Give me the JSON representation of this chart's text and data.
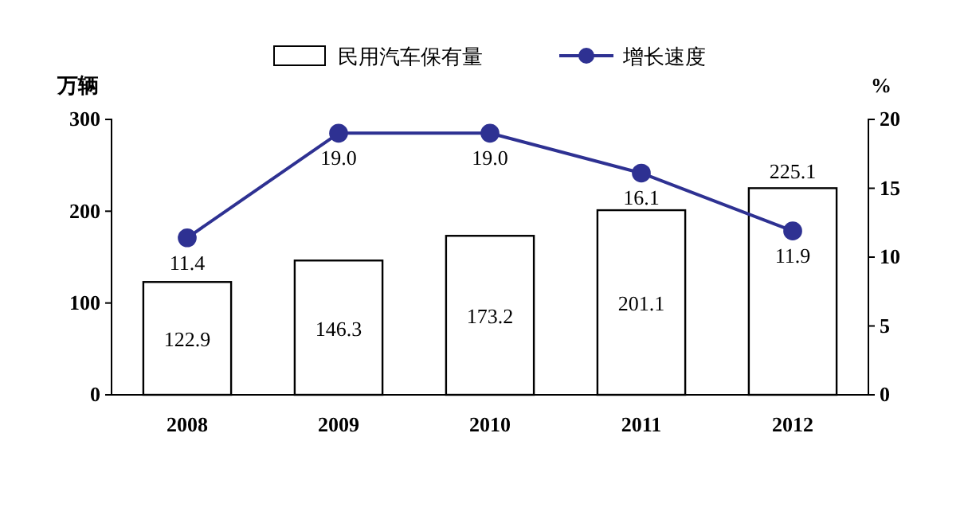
{
  "chart_data": {
    "type": "bar",
    "categories": [
      "2008",
      "2009",
      "2010",
      "2011",
      "2012"
    ],
    "series": [
      {
        "name": "民用汽车保有量",
        "color": "#ffffff",
        "values": [
          122.9,
          146.3,
          173.2,
          201.1,
          225.1
        ]
      },
      {
        "name": "增长速度",
        "type": "line",
        "axis": "y2",
        "color": "#2e3192",
        "values": [
          11.4,
          19.0,
          19.0,
          16.1,
          11.9
        ],
        "value_labels": [
          "11.4",
          "19.0",
          "19.0",
          "16.1",
          "11.9"
        ]
      }
    ],
    "ylabel": "万辆",
    "y2label": "%",
    "ylim": [
      0,
      300
    ],
    "yticks": [
      0,
      100,
      200,
      300
    ],
    "y2lim": [
      0,
      20
    ],
    "y2ticks": [
      0,
      5,
      10,
      15,
      20
    ],
    "data_labels": true,
    "legend": "top",
    "marker": "circle",
    "grid": false
  }
}
